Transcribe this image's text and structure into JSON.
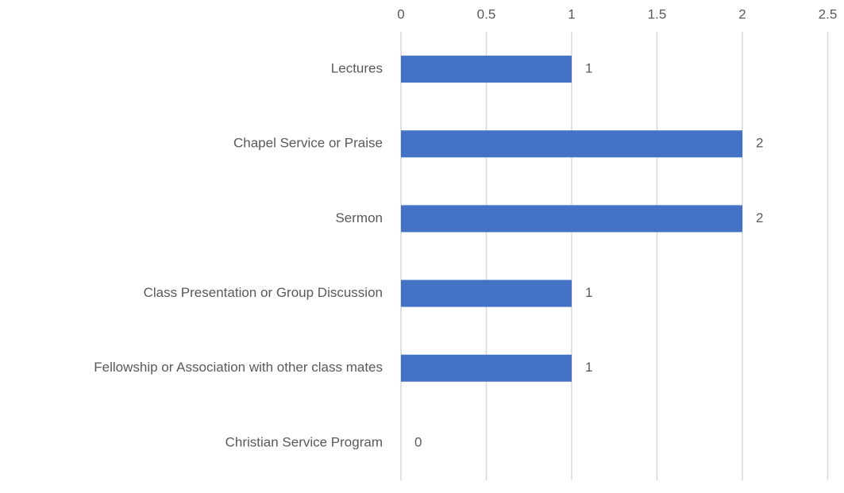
{
  "chart_data": {
    "type": "barh",
    "categories": [
      "Lectures",
      "Chapel Service or Praise",
      "Sermon",
      "Class Presentation or Group Discussion",
      "Fellowship or Association with other class mates",
      "Christian Service Program"
    ],
    "values": [
      1,
      2,
      2,
      1,
      1,
      0
    ],
    "color": "#4472c4",
    "xlim": [
      0,
      2.5
    ],
    "xticks": [
      0,
      0.5,
      1,
      1.5,
      2,
      2.5
    ],
    "grid": true
  }
}
